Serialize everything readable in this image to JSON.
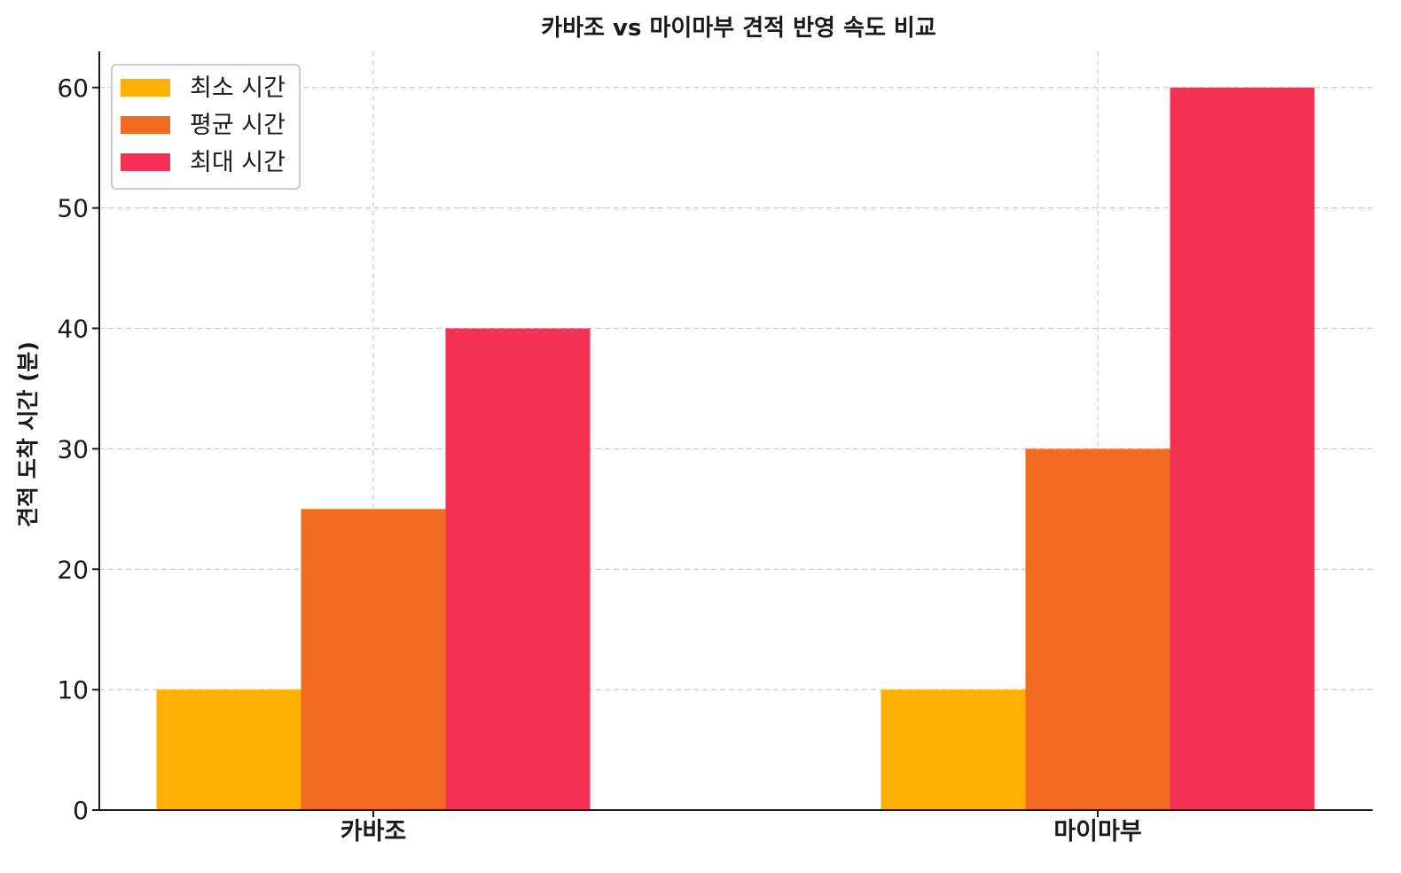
{
  "chart_data": {
    "type": "bar",
    "title": "카바조 vs 마이마부 견적 반영 속도 비교",
    "xlabel": "",
    "ylabel": "견적 도착 시간 (분)",
    "categories": [
      "카바조",
      "마이마부"
    ],
    "series": [
      {
        "name": "최소 시간",
        "values": [
          10,
          10
        ],
        "color": "#FFB000"
      },
      {
        "name": "평균 시간",
        "values": [
          25,
          30
        ],
        "color": "#F26B21"
      },
      {
        "name": "최대 시간",
        "values": [
          40,
          60
        ],
        "color": "#F53155"
      }
    ],
    "ylim": [
      0,
      63
    ],
    "yticks": [
      0,
      10,
      20,
      30,
      40,
      50,
      60
    ],
    "grid": true,
    "legend_position": "top-left"
  }
}
